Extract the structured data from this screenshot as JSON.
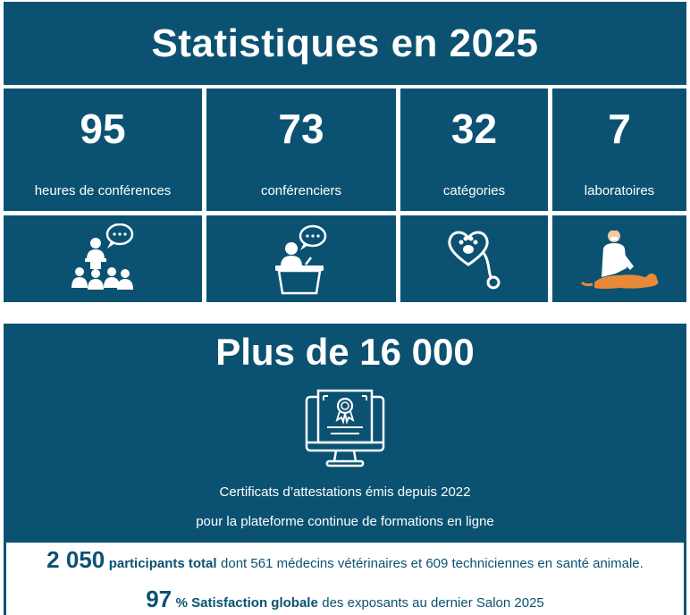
{
  "title": "Statistiques en 2025",
  "stats": [
    {
      "value": "95",
      "label": "heures de conférences",
      "icon": "audience-speaker-icon"
    },
    {
      "value": "73",
      "label": "conférenciers",
      "icon": "lectern-speaker-icon"
    },
    {
      "value": "32",
      "label": "catégories",
      "icon": "paw-stethoscope-icon"
    },
    {
      "value": "7",
      "label": "laboratoires",
      "icon": "veterinarian-dog-icon"
    }
  ],
  "highlight": {
    "headline": "Plus de 16 000",
    "icon": "certificate-monitor-icon",
    "line1": "Certificats d’attestations émis depuis 2022",
    "line2": "pour la plateforme continue de formations en ligne"
  },
  "footer": {
    "participants_number": "2 050",
    "participants_bold": "participants total",
    "participants_text": "dont 561 médecins vétérinaires et 609 techniciennes en santé animale.",
    "satisfaction_number": "97",
    "satisfaction_bold": "% Satisfaction globale",
    "satisfaction_text": "des exposants au dernier Salon 2025"
  },
  "colors": {
    "primary": "#0b5272",
    "text_on_primary": "#ffffff",
    "dog": "#e8893a"
  }
}
